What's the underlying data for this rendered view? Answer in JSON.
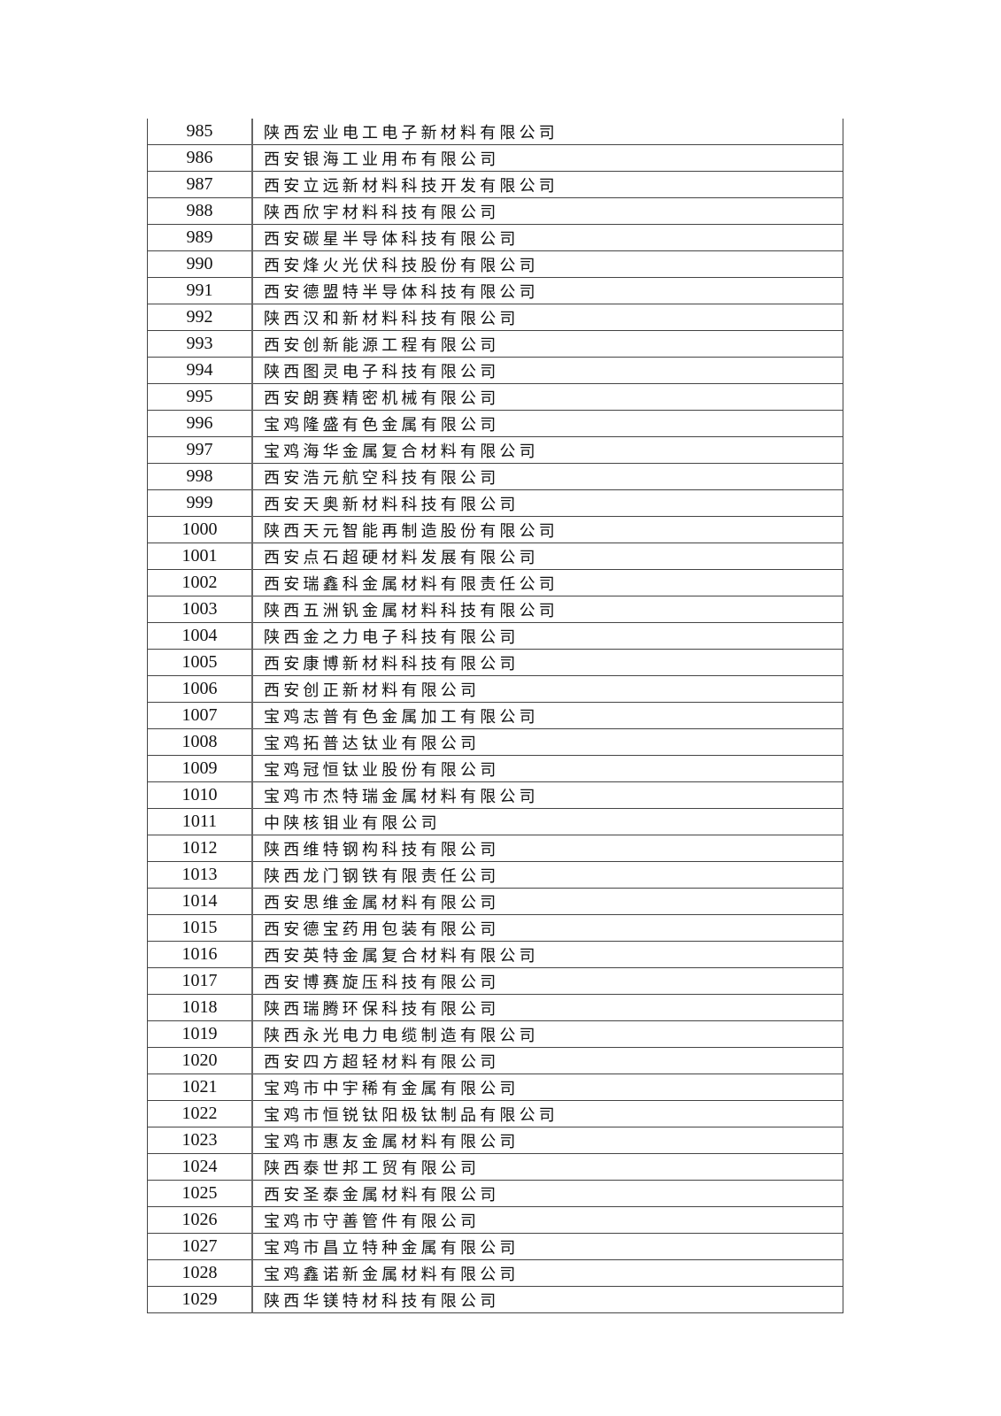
{
  "table": {
    "rows": [
      {
        "no": "985",
        "name": "陕西宏业电工电子新材料有限公司"
      },
      {
        "no": "986",
        "name": "西安银海工业用布有限公司"
      },
      {
        "no": "987",
        "name": "西安立远新材料科技开发有限公司"
      },
      {
        "no": "988",
        "name": "陕西欣宇材料科技有限公司"
      },
      {
        "no": "989",
        "name": "西安碳星半导体科技有限公司"
      },
      {
        "no": "990",
        "name": "西安烽火光伏科技股份有限公司"
      },
      {
        "no": "991",
        "name": "西安德盟特半导体科技有限公司"
      },
      {
        "no": "992",
        "name": "陕西汉和新材料科技有限公司"
      },
      {
        "no": "993",
        "name": "西安创新能源工程有限公司"
      },
      {
        "no": "994",
        "name": "陕西图灵电子科技有限公司"
      },
      {
        "no": "995",
        "name": "西安朗赛精密机械有限公司"
      },
      {
        "no": "996",
        "name": "宝鸡隆盛有色金属有限公司"
      },
      {
        "no": "997",
        "name": "宝鸡海华金属复合材料有限公司"
      },
      {
        "no": "998",
        "name": "西安浩元航空科技有限公司"
      },
      {
        "no": "999",
        "name": "西安天奥新材料科技有限公司"
      },
      {
        "no": "1000",
        "name": "陕西天元智能再制造股份有限公司"
      },
      {
        "no": "1001",
        "name": "西安点石超硬材料发展有限公司"
      },
      {
        "no": "1002",
        "name": "西安瑞鑫科金属材料有限责任公司"
      },
      {
        "no": "1003",
        "name": "陕西五洲钒金属材料科技有限公司"
      },
      {
        "no": "1004",
        "name": "陕西金之力电子科技有限公司"
      },
      {
        "no": "1005",
        "name": "西安康博新材料科技有限公司"
      },
      {
        "no": "1006",
        "name": "西安创正新材料有限公司"
      },
      {
        "no": "1007",
        "name": "宝鸡志普有色金属加工有限公司"
      },
      {
        "no": "1008",
        "name": "宝鸡拓普达钛业有限公司"
      },
      {
        "no": "1009",
        "name": "宝鸡冠恒钛业股份有限公司"
      },
      {
        "no": "1010",
        "name": "宝鸡市杰特瑞金属材料有限公司"
      },
      {
        "no": "1011",
        "name": "中陕核钼业有限公司"
      },
      {
        "no": "1012",
        "name": "陕西维特钢构科技有限公司"
      },
      {
        "no": "1013",
        "name": "陕西龙门钢铁有限责任公司"
      },
      {
        "no": "1014",
        "name": "西安思维金属材料有限公司"
      },
      {
        "no": "1015",
        "name": "西安德宝药用包装有限公司"
      },
      {
        "no": "1016",
        "name": "西安英特金属复合材料有限公司"
      },
      {
        "no": "1017",
        "name": "西安博赛旋压科技有限公司"
      },
      {
        "no": "1018",
        "name": "陕西瑞腾环保科技有限公司"
      },
      {
        "no": "1019",
        "name": "陕西永光电力电缆制造有限公司"
      },
      {
        "no": "1020",
        "name": "西安四方超轻材料有限公司"
      },
      {
        "no": "1021",
        "name": "宝鸡市中宇稀有金属有限公司"
      },
      {
        "no": "1022",
        "name": "宝鸡市恒锐钛阳极钛制品有限公司"
      },
      {
        "no": "1023",
        "name": "宝鸡市惠友金属材料有限公司"
      },
      {
        "no": "1024",
        "name": "陕西泰世邦工贸有限公司"
      },
      {
        "no": "1025",
        "name": "西安圣泰金属材料有限公司"
      },
      {
        "no": "1026",
        "name": "宝鸡市守善管件有限公司"
      },
      {
        "no": "1027",
        "name": "宝鸡市昌立特种金属有限公司"
      },
      {
        "no": "1028",
        "name": "宝鸡鑫诺新金属材料有限公司"
      },
      {
        "no": "1029",
        "name": "陕西华镁特材科技有限公司"
      }
    ]
  }
}
